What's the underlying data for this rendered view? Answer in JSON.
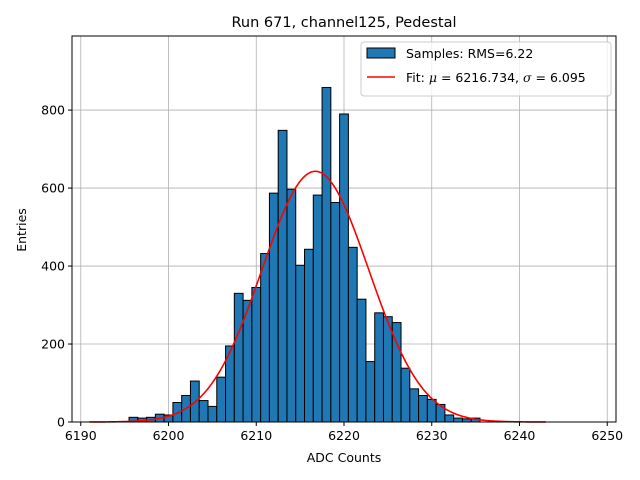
{
  "chart_data": {
    "type": "bar",
    "title": "Run 671, channel125, Pedestal",
    "xlabel": "ADC Counts",
    "ylabel": "Entries",
    "xlim": [
      6189,
      6251
    ],
    "ylim": [
      0,
      990
    ],
    "grid": true,
    "x_ticks": [
      6190,
      6200,
      6210,
      6220,
      6230,
      6240,
      6250
    ],
    "y_ticks": [
      0,
      200,
      400,
      600,
      800
    ],
    "bin_width": 1,
    "bins": [
      {
        "x": 6196,
        "value": 12
      },
      {
        "x": 6197,
        "value": 10
      },
      {
        "x": 6198,
        "value": 12
      },
      {
        "x": 6199,
        "value": 20
      },
      {
        "x": 6200,
        "value": 18
      },
      {
        "x": 6201,
        "value": 50
      },
      {
        "x": 6202,
        "value": 68
      },
      {
        "x": 6203,
        "value": 105
      },
      {
        "x": 6204,
        "value": 55
      },
      {
        "x": 6205,
        "value": 40
      },
      {
        "x": 6206,
        "value": 115
      },
      {
        "x": 6207,
        "value": 195
      },
      {
        "x": 6208,
        "value": 330
      },
      {
        "x": 6209,
        "value": 312
      },
      {
        "x": 6210,
        "value": 345
      },
      {
        "x": 6211,
        "value": 432
      },
      {
        "x": 6212,
        "value": 587
      },
      {
        "x": 6213,
        "value": 748
      },
      {
        "x": 6214,
        "value": 597
      },
      {
        "x": 6215,
        "value": 402
      },
      {
        "x": 6216,
        "value": 443
      },
      {
        "x": 6217,
        "value": 582
      },
      {
        "x": 6218,
        "value": 858
      },
      {
        "x": 6219,
        "value": 563
      },
      {
        "x": 6220,
        "value": 790
      },
      {
        "x": 6221,
        "value": 448
      },
      {
        "x": 6222,
        "value": 315
      },
      {
        "x": 6223,
        "value": 155
      },
      {
        "x": 6224,
        "value": 280
      },
      {
        "x": 6225,
        "value": 270
      },
      {
        "x": 6226,
        "value": 255
      },
      {
        "x": 6227,
        "value": 138
      },
      {
        "x": 6228,
        "value": 85
      },
      {
        "x": 6229,
        "value": 68
      },
      {
        "x": 6230,
        "value": 58
      },
      {
        "x": 6231,
        "value": 45
      },
      {
        "x": 6232,
        "value": 18
      },
      {
        "x": 6233,
        "value": 10
      },
      {
        "x": 6234,
        "value": 8
      },
      {
        "x": 6235,
        "value": 10
      }
    ],
    "fit": {
      "type": "gaussian",
      "mu": 6216.734,
      "sigma": 6.095,
      "amplitude": 643,
      "x_range": [
        6191,
        6243
      ],
      "color": "#ff0000"
    },
    "bar_color": "#1f77b4",
    "bar_edge_color": "#000000",
    "legend": {
      "position": "top-right",
      "entries": [
        {
          "type": "patch",
          "label": "Samples: RMS=6.22",
          "color": "#1f77b4"
        },
        {
          "type": "line",
          "label_prefix": "Fit: ",
          "label_mu": "μ",
          "label_mid": " = 6216.734, ",
          "label_sigma": "σ",
          "label_suffix": " = 6.095",
          "color": "#ff0000"
        }
      ]
    }
  }
}
